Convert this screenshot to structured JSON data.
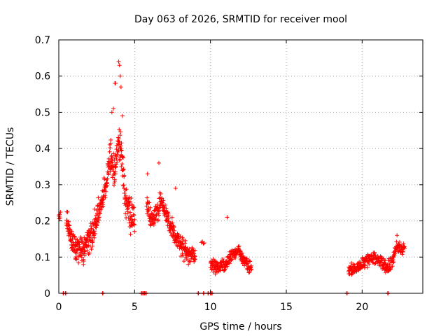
{
  "chart_data": {
    "type": "scatter",
    "title": "Day 063 of 2026, SRMTID for receiver mool",
    "xlabel": "GPS time / hours",
    "ylabel": "SRMTID / TECUs",
    "xlim": [
      0,
      24
    ],
    "ylim": [
      0,
      0.7
    ],
    "xticks": [
      0,
      5,
      10,
      15,
      20
    ],
    "yticks": [
      0,
      0.1,
      0.2,
      0.3,
      0.4,
      0.5,
      0.6,
      0.7
    ],
    "ytick_labels": [
      "0",
      "0.1",
      "0.2",
      "0.3",
      "0.4",
      "0.5",
      "0.6",
      "0.7"
    ],
    "grid": true,
    "marker": "+",
    "color": "#ff0000",
    "segments": [
      {
        "start": 0.0,
        "end": 0.1,
        "trend": [
          [
            0.0,
            0.22
          ],
          [
            0.1,
            0.21
          ]
        ],
        "spread": 0.03,
        "count": 6
      },
      {
        "start": 0.5,
        "end": 5.0,
        "trend": [
          [
            0.5,
            0.2
          ],
          [
            0.8,
            0.15
          ],
          [
            1.2,
            0.11
          ],
          [
            1.7,
            0.13
          ],
          [
            2.2,
            0.17
          ],
          [
            2.7,
            0.23
          ],
          [
            3.1,
            0.3
          ],
          [
            3.4,
            0.38
          ],
          [
            3.7,
            0.33
          ],
          [
            3.95,
            0.42
          ],
          [
            4.15,
            0.38
          ],
          [
            4.4,
            0.25
          ],
          [
            4.7,
            0.22
          ],
          [
            5.0,
            0.21
          ]
        ],
        "spread": 0.06,
        "count": 420
      },
      {
        "start": 5.8,
        "end": 9.0,
        "trend": [
          [
            5.8,
            0.25
          ],
          [
            6.1,
            0.19
          ],
          [
            6.5,
            0.23
          ],
          [
            6.9,
            0.25
          ],
          [
            7.3,
            0.19
          ],
          [
            7.8,
            0.15
          ],
          [
            8.3,
            0.12
          ],
          [
            8.8,
            0.11
          ],
          [
            9.0,
            0.1
          ]
        ],
        "spread": 0.045,
        "count": 260
      },
      {
        "start": 9.4,
        "end": 9.6,
        "trend": [
          [
            9.4,
            0.14
          ],
          [
            9.6,
            0.14
          ]
        ],
        "spread": 0.01,
        "count": 4
      },
      {
        "start": 10.0,
        "end": 12.7,
        "trend": [
          [
            10.0,
            0.08
          ],
          [
            10.5,
            0.07
          ],
          [
            11.0,
            0.08
          ],
          [
            11.3,
            0.1
          ],
          [
            11.8,
            0.12
          ],
          [
            12.2,
            0.09
          ],
          [
            12.7,
            0.07
          ]
        ],
        "spread": 0.025,
        "count": 200
      },
      {
        "start": 19.1,
        "end": 22.8,
        "trend": [
          [
            19.1,
            0.06
          ],
          [
            19.6,
            0.07
          ],
          [
            20.2,
            0.09
          ],
          [
            20.8,
            0.1
          ],
          [
            21.2,
            0.09
          ],
          [
            21.6,
            0.07
          ],
          [
            22.0,
            0.09
          ],
          [
            22.3,
            0.13
          ],
          [
            22.8,
            0.12
          ]
        ],
        "spread": 0.025,
        "count": 260
      }
    ],
    "highlights": [
      {
        "x": 3.95,
        "y": 0.64
      },
      {
        "x": 4.0,
        "y": 0.63
      },
      {
        "x": 3.75,
        "y": 0.58
      },
      {
        "x": 3.7,
        "y": 0.58
      },
      {
        "x": 4.05,
        "y": 0.6
      },
      {
        "x": 3.5,
        "y": 0.5
      },
      {
        "x": 3.6,
        "y": 0.51
      },
      {
        "x": 4.1,
        "y": 0.57
      },
      {
        "x": 6.6,
        "y": 0.36
      },
      {
        "x": 5.85,
        "y": 0.33
      },
      {
        "x": 7.7,
        "y": 0.29
      },
      {
        "x": 11.1,
        "y": 0.21
      },
      {
        "x": 22.3,
        "y": 0.16
      },
      {
        "x": 4.2,
        "y": 0.49
      }
    ],
    "baseline_x": [
      0.3,
      0.45,
      2.9,
      5.45,
      5.55,
      5.65,
      5.75,
      9.2,
      9.55,
      9.85,
      10.0,
      10.1,
      19.0,
      21.7
    ]
  }
}
